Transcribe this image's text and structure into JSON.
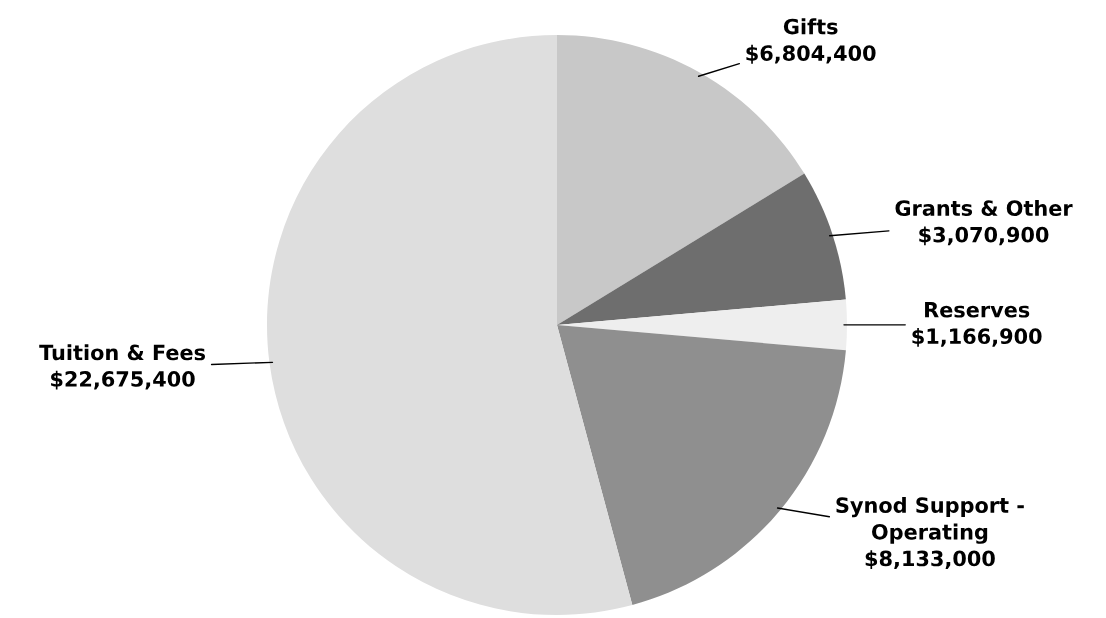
{
  "chart_data": {
    "type": "pie",
    "categories": [
      "Gifts",
      "Grants & Other",
      "Reserves",
      "Synod Support -\nOperating",
      "Tuition & Fees"
    ],
    "values": [
      6804400,
      3070900,
      1166900,
      8133000,
      22675400
    ],
    "value_labels": [
      "$6,804,400",
      "$3,070,900",
      "$1,166,900",
      "$8,133,000",
      "$22,675,400"
    ],
    "colors": [
      "#c8c8c8",
      "#6e6e6e",
      "#eeeeee",
      "#8f8f8f",
      "#dedede"
    ],
    "legend": false
  }
}
